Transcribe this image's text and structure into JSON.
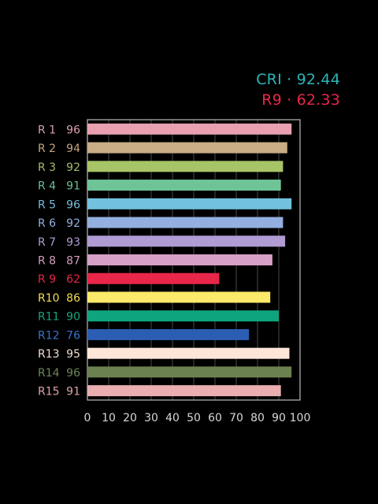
{
  "summary": {
    "cri_text": "CRI · 92.44",
    "cri_color": "#2bb5b8",
    "r9_text": "R9 · 62.33",
    "r9_color": "#e8264a"
  },
  "chart_data": {
    "type": "bar",
    "orientation": "horizontal",
    "title": "",
    "xlabel": "",
    "ylabel": "",
    "xlim": [
      0,
      100
    ],
    "xticks": [
      0,
      10,
      20,
      30,
      40,
      50,
      60,
      70,
      80,
      90,
      100
    ],
    "grid": "vertical",
    "axis_color": "#bbbbbb",
    "grid_color": "#4a4a4a",
    "categories": [
      "R 1",
      "R 2",
      "R 3",
      "R 4",
      "R 5",
      "R 6",
      "R 7",
      "R 8",
      "R 9",
      "R10",
      "R11",
      "R12",
      "R13",
      "R14",
      "R15"
    ],
    "values": [
      96,
      94,
      92,
      91,
      96,
      92,
      93,
      87,
      62,
      86,
      90,
      76,
      95,
      96,
      91
    ],
    "bar_colors": [
      "#e8a0b0",
      "#c8ad85",
      "#a7c567",
      "#6fc497",
      "#72c2df",
      "#93afe0",
      "#b09bd3",
      "#d7a0c6",
      "#e8264a",
      "#fce96a",
      "#0ea57e",
      "#2b5eb3",
      "#fde6d8",
      "#6b8150",
      "#eaaeb0"
    ],
    "label_colors": [
      "#d9a0aa",
      "#c4a57e",
      "#a3be6a",
      "#6cbf92",
      "#74bfdc",
      "#93afe0",
      "#b09bd3",
      "#d29dbf",
      "#e8264a",
      "#f2dc55",
      "#17a57e",
      "#3a73c7",
      "#f1ddd1",
      "#6e8758",
      "#dea3a6"
    ]
  }
}
